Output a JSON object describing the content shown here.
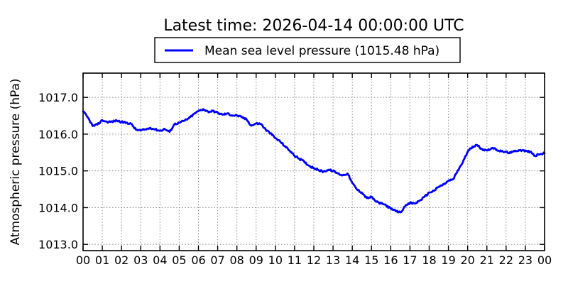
{
  "title": "Latest time: 2026-04-14 00:00:00 UTC",
  "legend": {
    "label": "Mean sea level pressure (1015.48 hPa)",
    "line_color": "#0000ff"
  },
  "chart_data": {
    "type": "line",
    "title": "Latest time: 2026-04-14 00:00:00 UTC",
    "xlabel": "",
    "ylabel": "Atmospheric pressure (hPa)",
    "xlim": [
      0,
      24
    ],
    "ylim": [
      1012.83,
      1017.66
    ],
    "grid": true,
    "grid_style": "dotted",
    "legend_position": "top-center-outside",
    "latest_value_hpa": 1015.48,
    "xtick_hours": [
      0,
      1,
      2,
      3,
      4,
      5,
      6,
      7,
      8,
      9,
      10,
      11,
      12,
      13,
      14,
      15,
      16,
      17,
      18,
      19,
      20,
      21,
      22,
      23,
      24
    ],
    "xtick_labels": [
      "00",
      "01",
      "02",
      "03",
      "04",
      "05",
      "06",
      "07",
      "08",
      "09",
      "10",
      "11",
      "12",
      "13",
      "14",
      "15",
      "16",
      "17",
      "18",
      "19",
      "20",
      "21",
      "22",
      "23",
      "00"
    ],
    "ytick_values": [
      1013.0,
      1014.0,
      1015.0,
      1016.0,
      1017.0
    ],
    "ytick_labels": [
      "1013.0",
      "1014.0",
      "1015.0",
      "1016.0",
      "1017.0"
    ],
    "series": [
      {
        "name": "Mean sea level pressure (1015.48 hPa)",
        "color": "#0000ff",
        "x_hours": [
          0.0,
          0.25,
          0.5,
          0.75,
          1.0,
          1.25,
          1.5,
          1.75,
          2.0,
          2.25,
          2.5,
          2.75,
          3.0,
          3.25,
          3.5,
          3.75,
          4.0,
          4.25,
          4.5,
          4.75,
          5.0,
          5.25,
          5.5,
          5.75,
          6.0,
          6.25,
          6.5,
          6.75,
          7.0,
          7.25,
          7.5,
          7.75,
          8.0,
          8.25,
          8.5,
          8.75,
          9.0,
          9.25,
          9.5,
          9.75,
          10.0,
          10.25,
          10.5,
          10.75,
          11.0,
          11.25,
          11.5,
          11.75,
          12.0,
          12.25,
          12.5,
          12.75,
          13.0,
          13.25,
          13.5,
          13.75,
          14.0,
          14.25,
          14.5,
          14.75,
          15.0,
          15.25,
          15.5,
          15.75,
          16.0,
          16.25,
          16.5,
          16.75,
          17.0,
          17.25,
          17.5,
          17.75,
          18.0,
          18.25,
          18.5,
          18.75,
          19.0,
          19.25,
          19.5,
          19.75,
          20.0,
          20.25,
          20.5,
          20.75,
          21.0,
          21.25,
          21.5,
          21.75,
          22.0,
          22.25,
          22.5,
          22.75,
          23.0,
          23.25,
          23.5,
          23.75,
          24.0
        ],
        "values": [
          1016.62,
          1016.45,
          1016.22,
          1016.26,
          1016.38,
          1016.33,
          1016.34,
          1016.37,
          1016.33,
          1016.31,
          1016.28,
          1016.12,
          1016.1,
          1016.13,
          1016.17,
          1016.13,
          1016.09,
          1016.14,
          1016.06,
          1016.27,
          1016.31,
          1016.36,
          1016.43,
          1016.54,
          1016.63,
          1016.68,
          1016.61,
          1016.63,
          1016.58,
          1016.53,
          1016.56,
          1016.51,
          1016.51,
          1016.46,
          1016.4,
          1016.23,
          1016.29,
          1016.28,
          1016.12,
          1016.02,
          1015.89,
          1015.8,
          1015.67,
          1015.55,
          1015.41,
          1015.33,
          1015.25,
          1015.14,
          1015.08,
          1015.02,
          1014.98,
          1015.03,
          1015.0,
          1014.93,
          1014.88,
          1014.93,
          1014.67,
          1014.49,
          1014.41,
          1014.26,
          1014.29,
          1014.16,
          1014.11,
          1014.07,
          1013.97,
          1013.91,
          1013.87,
          1014.03,
          1014.13,
          1014.11,
          1014.19,
          1014.29,
          1014.41,
          1014.46,
          1014.57,
          1014.63,
          1014.73,
          1014.77,
          1015.02,
          1015.24,
          1015.52,
          1015.66,
          1015.7,
          1015.59,
          1015.56,
          1015.62,
          1015.58,
          1015.53,
          1015.51,
          1015.49,
          1015.55,
          1015.57,
          1015.54,
          1015.52,
          1015.41,
          1015.45,
          1015.48
        ]
      }
    ]
  },
  "colors": {
    "line": "#0000ff",
    "grid": "#8a8a8a",
    "axis": "#000000",
    "background": "#ffffff"
  }
}
